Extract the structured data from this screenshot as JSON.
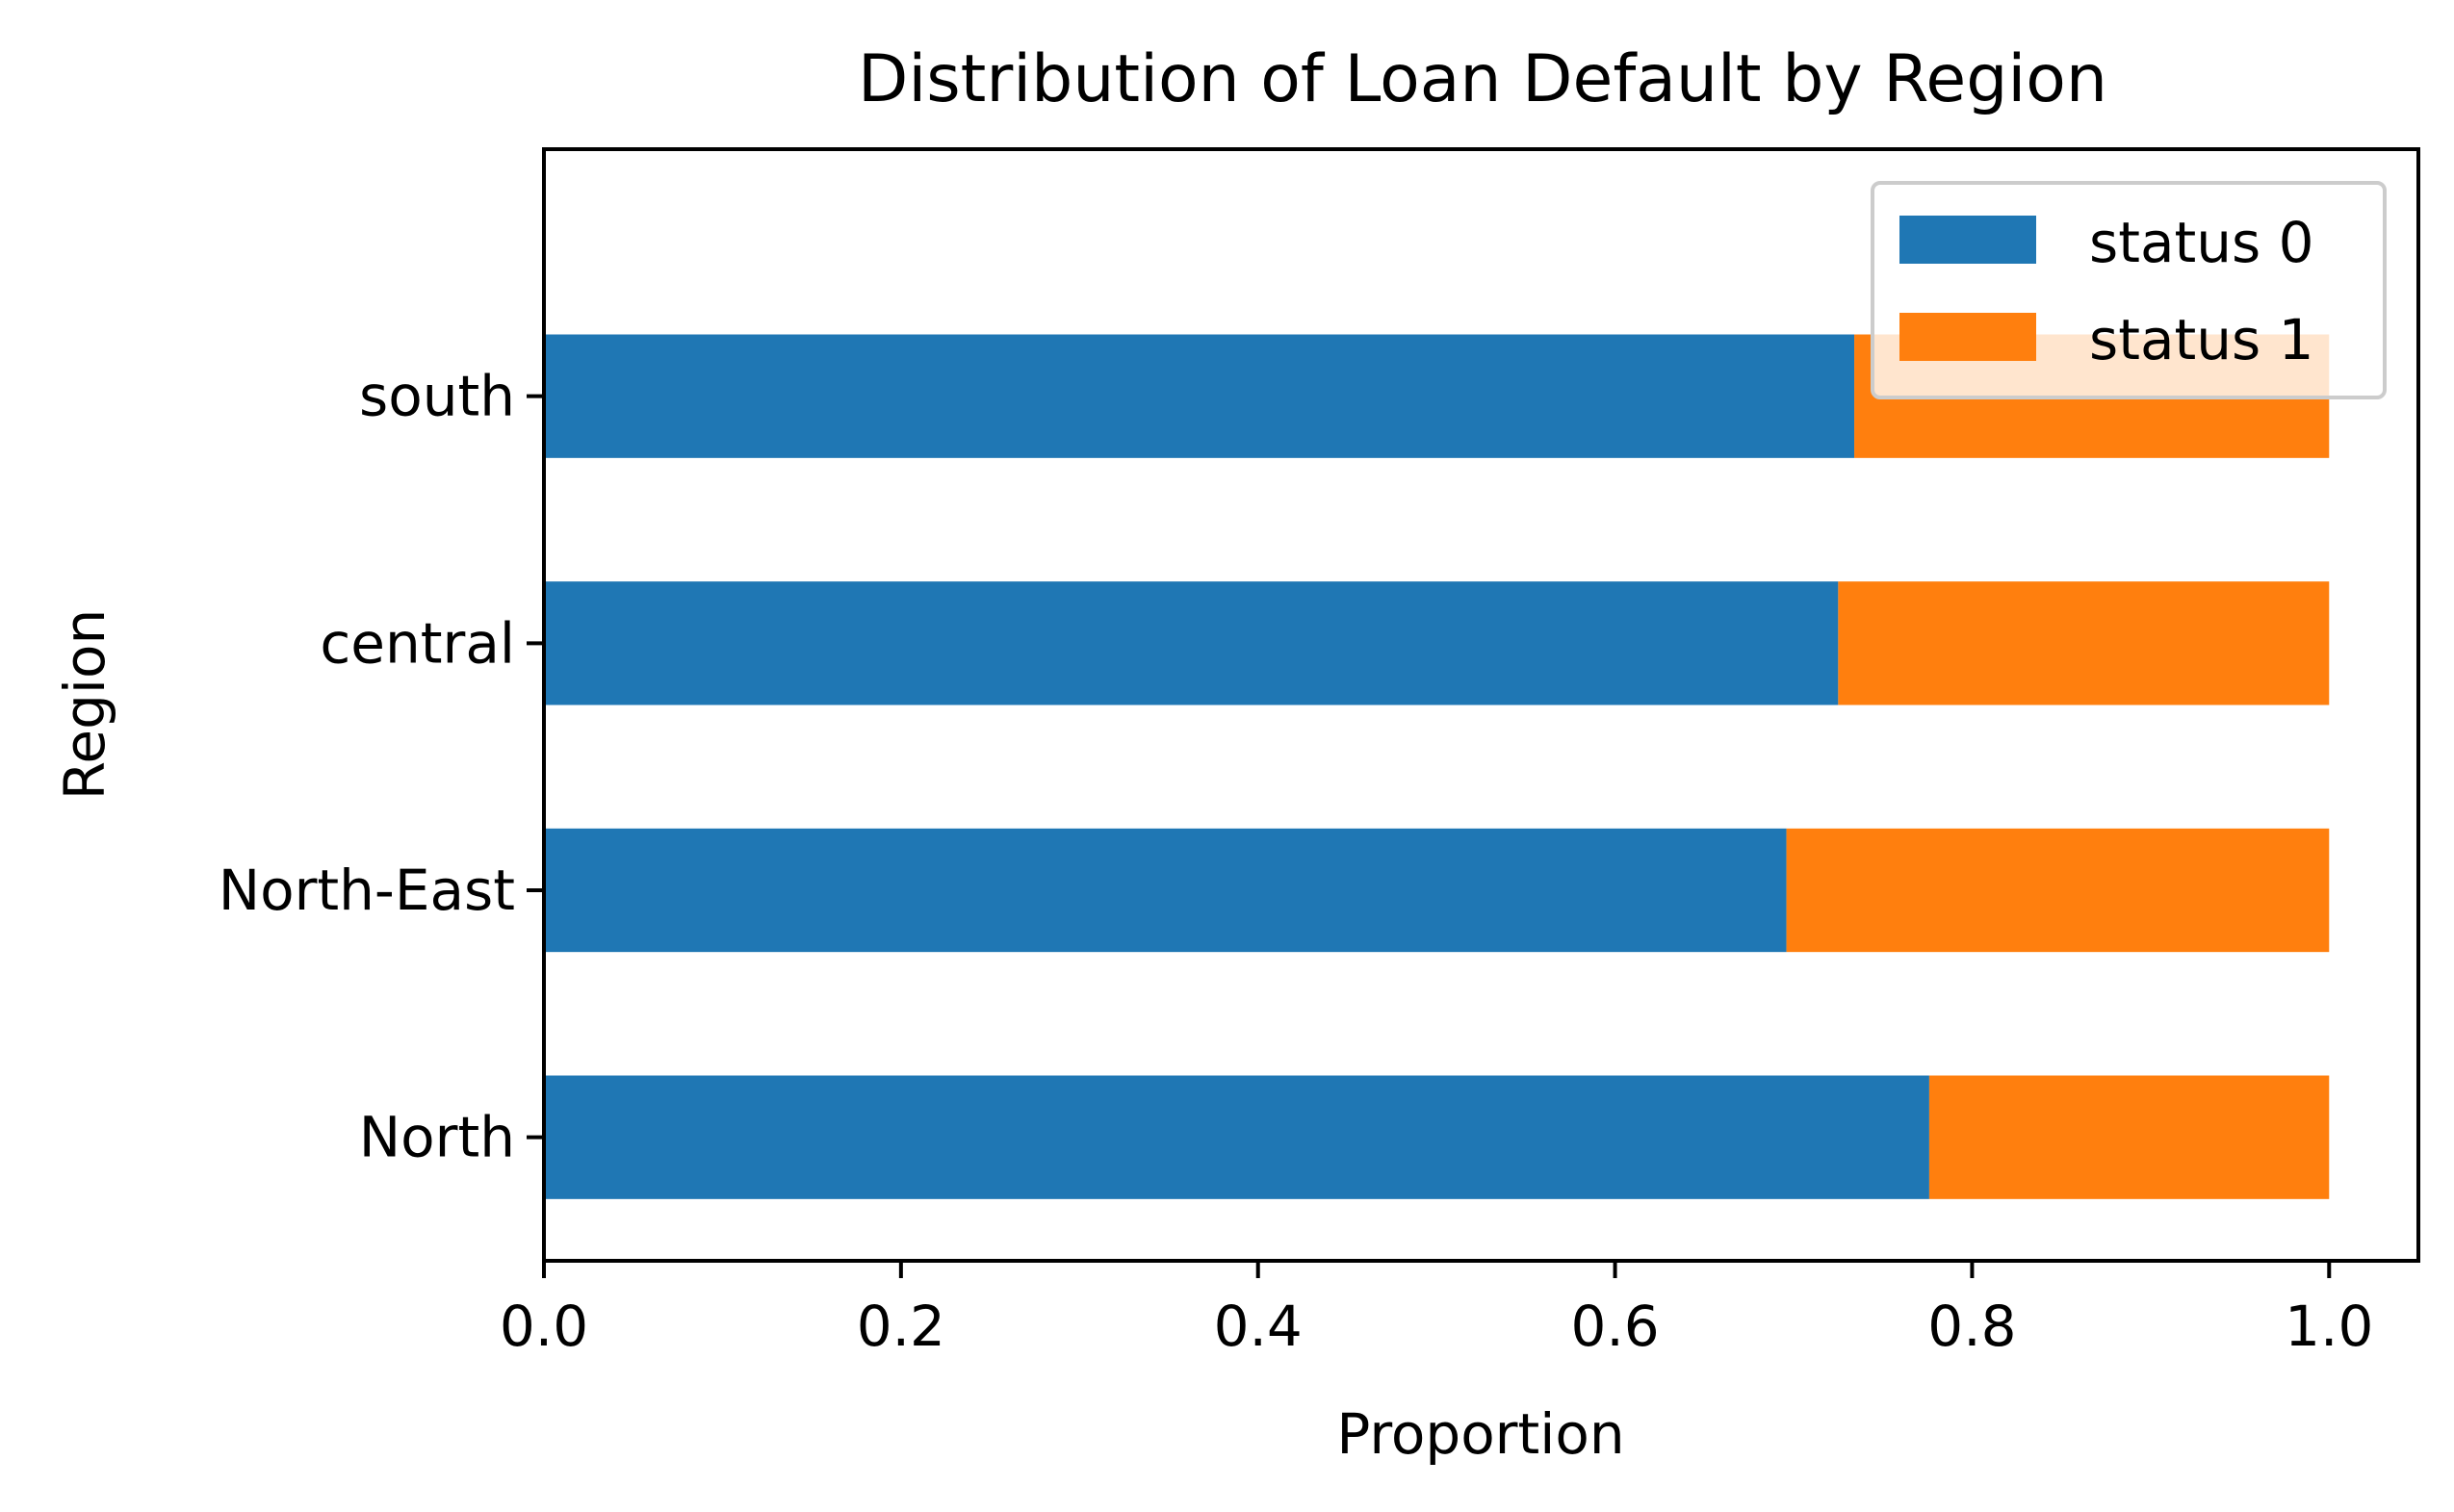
{
  "chart_data": {
    "type": "bar",
    "orientation": "horizontal",
    "stacked": true,
    "title": "Distribution of Loan Default by Region",
    "xlabel": "Proportion",
    "ylabel": "Region",
    "categories": [
      "North",
      "North-East",
      "central",
      "south"
    ],
    "series": [
      {
        "name": "status 0",
        "color": "#1f77b4",
        "values": [
          0.776,
          0.696,
          0.725,
          0.734
        ]
      },
      {
        "name": "status 1",
        "color": "#ff7f0e",
        "values": [
          0.224,
          0.304,
          0.275,
          0.266
        ]
      }
    ],
    "xlim": [
      0.0,
      1.05
    ],
    "xticks": [
      0.0,
      0.2,
      0.4,
      0.6,
      0.8,
      1.0
    ],
    "xtick_labels": [
      "0.0",
      "0.2",
      "0.4",
      "0.6",
      "0.8",
      "1.0"
    ],
    "grid": false,
    "legend_position": "top-right"
  }
}
